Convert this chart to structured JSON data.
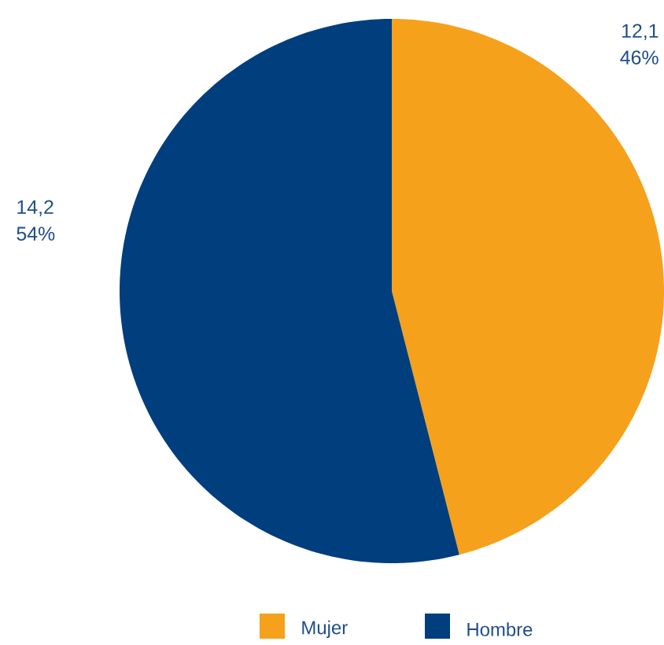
{
  "chart_data": {
    "type": "pie",
    "categories": [
      "Mujer",
      "Hombre"
    ],
    "values": [
      12.1,
      14.2
    ],
    "colors": [
      "#f5a11c",
      "#003e7e"
    ],
    "value_labels": [
      "12,1",
      "14,2"
    ],
    "annotations": [
      "46%",
      "54%"
    ],
    "legend": "bottom"
  }
}
